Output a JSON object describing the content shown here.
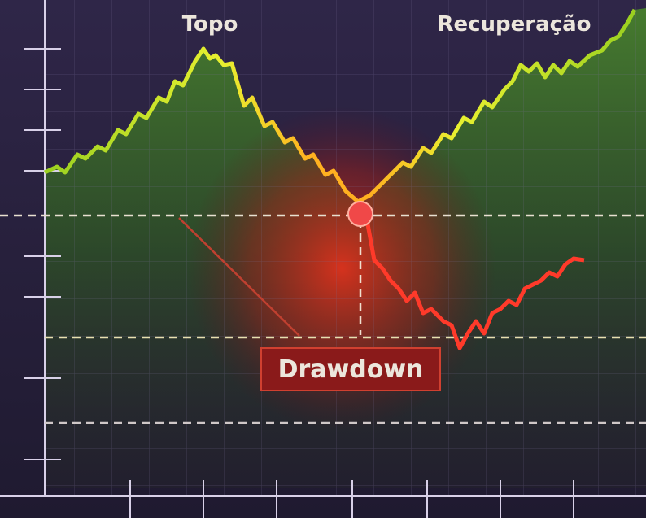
{
  "annotations": {
    "peak": "Topo",
    "recovery": "Recuperação",
    "drawdown": "Drawdown"
  }
}
